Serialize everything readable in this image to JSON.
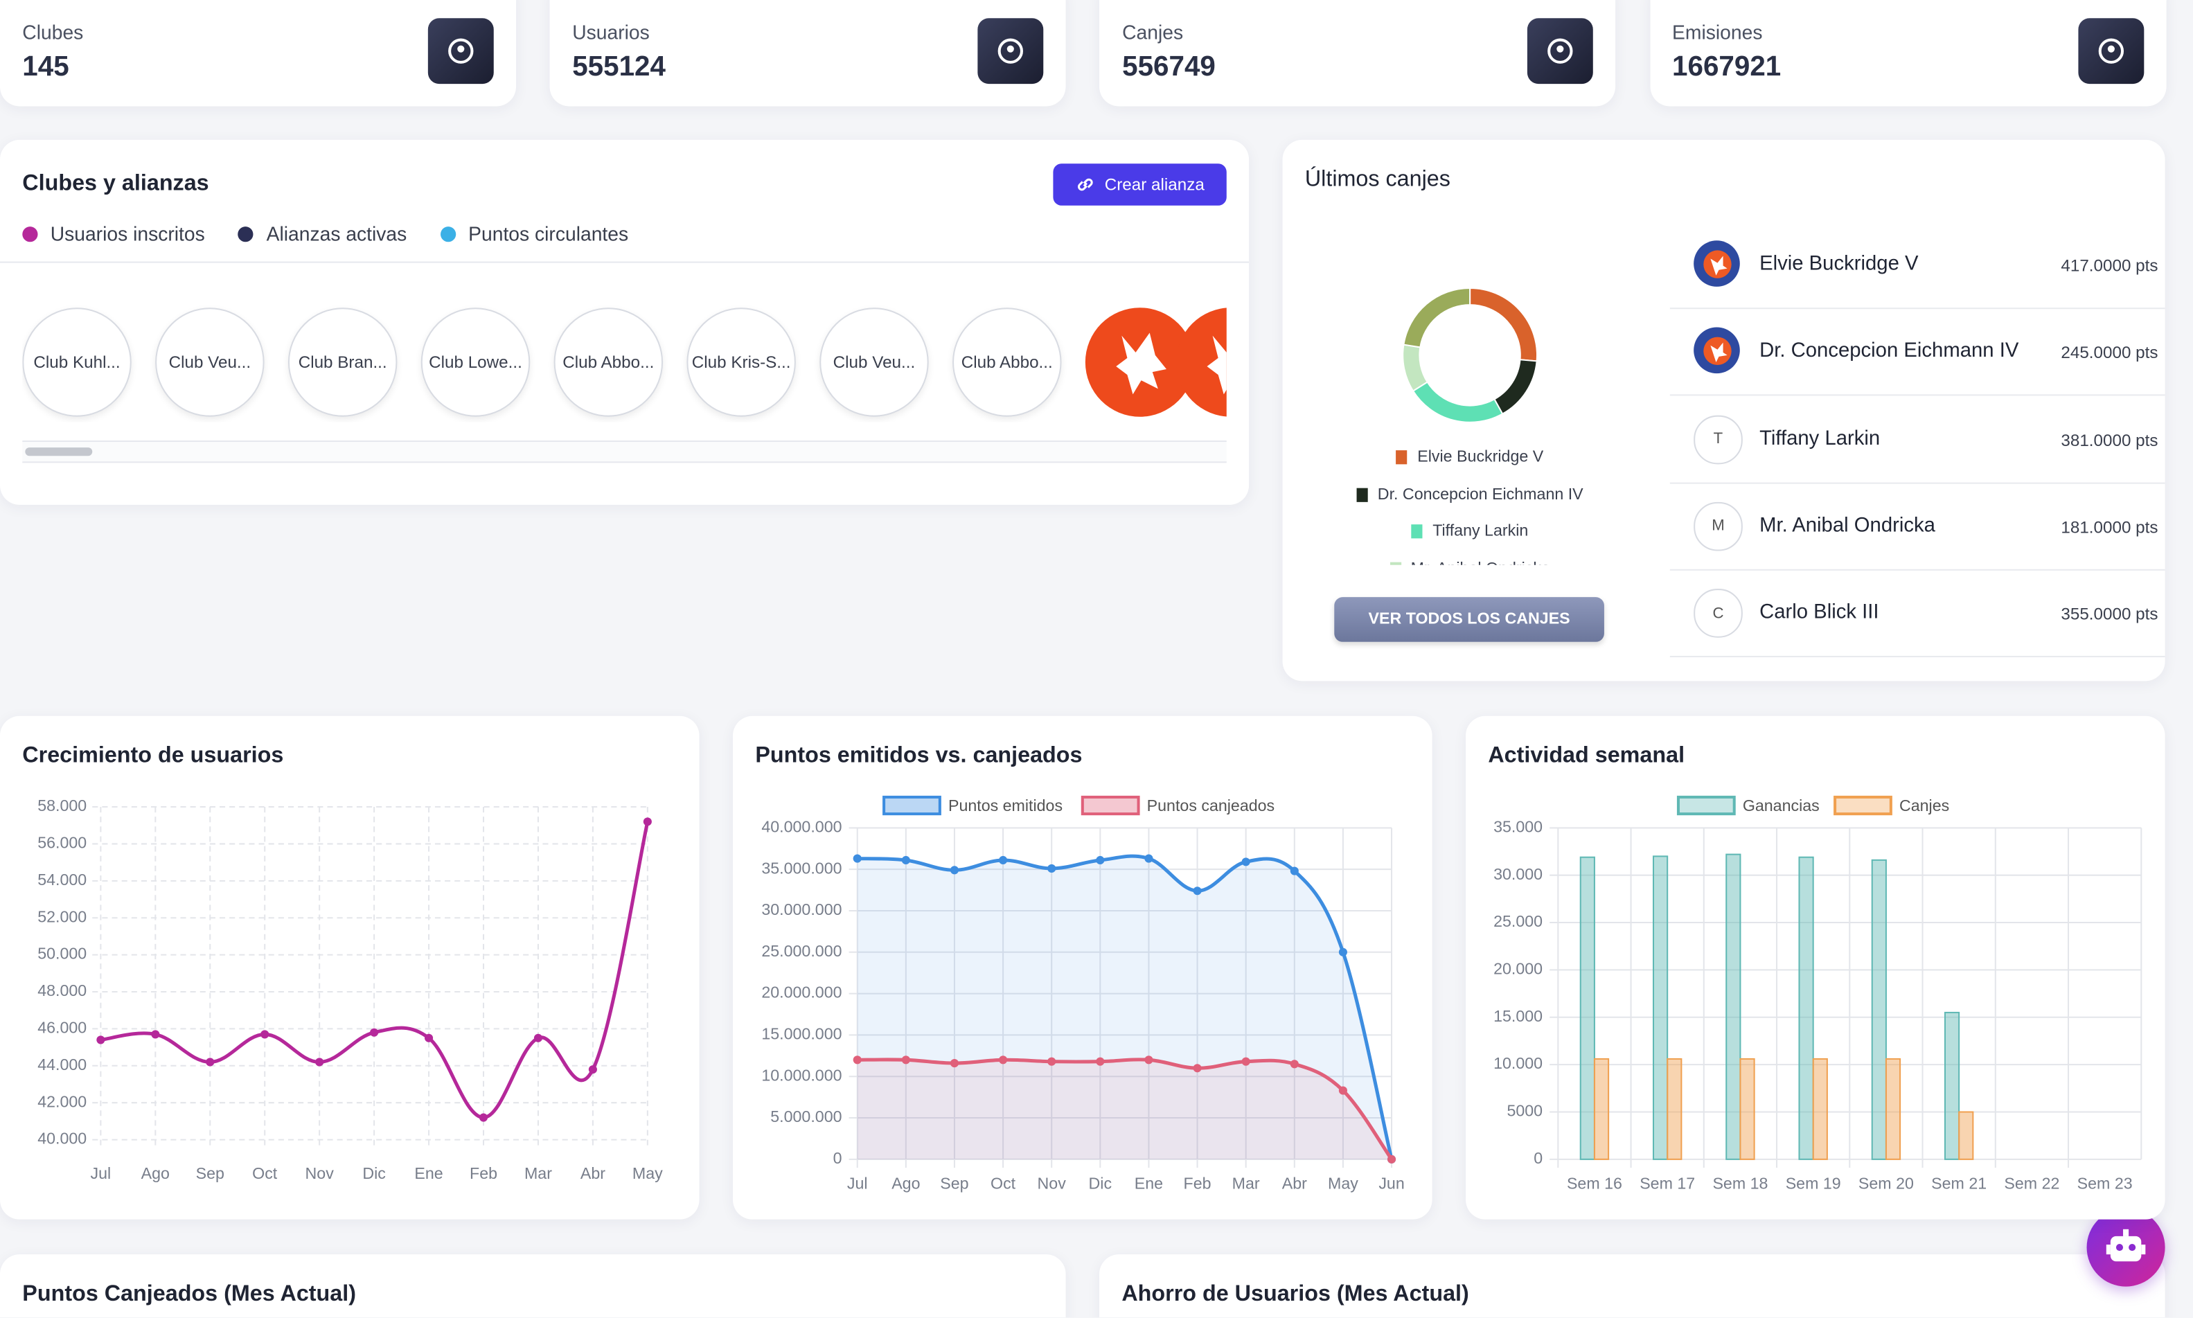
{
  "stats": [
    {
      "label": "Clubes",
      "value": 145
    },
    {
      "label": "Usuarios",
      "value": 555124
    },
    {
      "label": "Canjes",
      "value": 556749
    },
    {
      "label": "Emisiones",
      "value": 1667921
    }
  ],
  "clubs_panel": {
    "title": "Clubes y alianzas",
    "button": "Crear alianza",
    "legend": [
      {
        "name": "Usuarios inscritos",
        "color": "#b5289a"
      },
      {
        "name": "Alianzas activas",
        "color": "#2b2f55"
      },
      {
        "name": "Puntos circulantes",
        "color": "#3bb0e6"
      }
    ],
    "clubs": [
      "Club Kuhl...",
      "Club Veu...",
      "Club Bran...",
      "Club Lowe...",
      "Club Abbo...",
      "Club Kris-S...",
      "Club Veu...",
      "Club Abbo..."
    ]
  },
  "canjes_panel": {
    "title": "Últimos canjes",
    "button": "VER TODOS LOS CANJES",
    "initials": [
      null,
      null,
      "T",
      "M",
      "C"
    ]
  },
  "bottom_titles": [
    "Puntos Canjeados (Mes Actual)",
    "Ahorro de Usuarios (Mes Actual)"
  ],
  "chart_data": [
    {
      "type": "donut",
      "categories": [
        "Elvie Buckridge V",
        "Dr. Concepcion Eichmann IV",
        "Tiffany Larkin",
        "Mr. Anibal Ondricka",
        "Carlo Blick III"
      ],
      "values": [
        417,
        245,
        381,
        181,
        355
      ],
      "value_labels": [
        "417.0000 pts",
        "245.0000 pts",
        "381.0000 pts",
        "181.0000 pts",
        "355.0000 pts"
      ],
      "colors": [
        "#d9622b",
        "#1f2a1f",
        "#5ee0b4",
        "#c3e6c0",
        "#9aab5a"
      ]
    },
    {
      "type": "line",
      "title": "Crecimiento de usuarios",
      "categories": [
        "Jul",
        "Ago",
        "Sep",
        "Oct",
        "Nov",
        "Dic",
        "Ene",
        "Feb",
        "Mar",
        "Abr",
        "May"
      ],
      "series": [
        {
          "color": "#b5289a",
          "values": [
            45400,
            45700,
            44200,
            45700,
            44200,
            45800,
            45500,
            41200,
            45500,
            43800,
            57200
          ]
        }
      ],
      "ylim": [
        40000,
        58000
      ],
      "yticks": [
        {
          "value": 40000,
          "label": "40.000"
        },
        {
          "value": 42000,
          "label": "42.000"
        },
        {
          "value": 44000,
          "label": "44.000"
        },
        {
          "value": 46000,
          "label": "46.000"
        },
        {
          "value": 48000,
          "label": "48.000"
        },
        {
          "value": 50000,
          "label": "50.000"
        },
        {
          "value": 52000,
          "label": "52.000"
        },
        {
          "value": 54000,
          "label": "54.000"
        },
        {
          "value": 56000,
          "label": "56.000"
        },
        {
          "value": 58000,
          "label": "58.000"
        }
      ],
      "grid": "dashed"
    },
    {
      "type": "line",
      "title": "Puntos emitidos vs. canjeados",
      "categories": [
        "Jul",
        "Ago",
        "Sep",
        "Oct",
        "Nov",
        "Dic",
        "Ene",
        "Feb",
        "Mar",
        "Abr",
        "May",
        "Jun"
      ],
      "series": [
        {
          "name": "Puntos emitidos",
          "color": "#3d8de0",
          "area": true,
          "values": [
            36300000,
            36100000,
            34900000,
            36100000,
            35100000,
            36100000,
            36300000,
            32400000,
            35900000,
            34800000,
            25000000,
            0
          ]
        },
        {
          "name": "Puntos canjeados",
          "color": "#e0607a",
          "area": true,
          "values": [
            12000000,
            12000000,
            11600000,
            12000000,
            11800000,
            11800000,
            12000000,
            11000000,
            11800000,
            11500000,
            8300000,
            0
          ]
        }
      ],
      "ylim": [
        0,
        40000000
      ],
      "yticks": [
        0,
        {
          "value": 5000000,
          "label": "5.000.000"
        },
        {
          "value": 10000000,
          "label": "10.000.000"
        },
        {
          "value": 15000000,
          "label": "15.000.000"
        },
        {
          "value": 20000000,
          "label": "20.000.000"
        },
        {
          "value": 25000000,
          "label": "25.000.000"
        },
        {
          "value": 30000000,
          "label": "30.000.000"
        },
        {
          "value": 35000000,
          "label": "35.000.000"
        },
        {
          "value": 40000000,
          "label": "40.000.000"
        }
      ],
      "grid": "solid",
      "legend": "top"
    },
    {
      "type": "bar",
      "title": "Actividad semanal",
      "categories": [
        "Sem 16",
        "Sem 17",
        "Sem 18",
        "Sem 19",
        "Sem 20",
        "Sem 21",
        "Sem 22",
        "Sem 23"
      ],
      "series": [
        {
          "name": "Ganancias",
          "color": "#5fb8b4",
          "values": [
            31900,
            32000,
            32200,
            31900,
            31600,
            15500,
            0,
            0
          ]
        },
        {
          "name": "Canjes",
          "color": "#f0a050",
          "values": [
            10600,
            10600,
            10600,
            10600,
            10600,
            5000,
            0,
            0
          ]
        }
      ],
      "ylim": [
        0,
        35000
      ],
      "yticks": [
        0,
        5000,
        {
          "value": 10000,
          "label": "10.000"
        },
        {
          "value": 15000,
          "label": "15.000"
        },
        {
          "value": 20000,
          "label": "20.000"
        },
        {
          "value": 25000,
          "label": "25.000"
        },
        {
          "value": 30000,
          "label": "30.000"
        },
        {
          "value": 35000,
          "label": "35.000"
        }
      ],
      "grid": "solid",
      "legend": "top"
    }
  ]
}
